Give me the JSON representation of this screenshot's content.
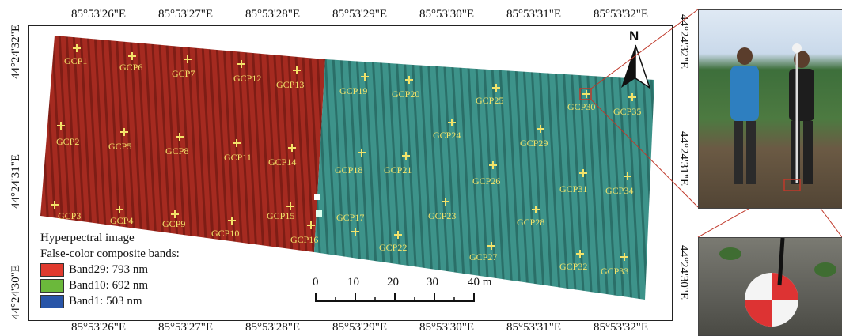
{
  "coords": {
    "top": [
      "85°53'26\"E",
      "85°53'27\"E",
      "85°53'28\"E",
      "85°53'29\"E",
      "85°53'30\"E",
      "85°53'31\"E",
      "85°53'32\"E"
    ],
    "bottom": [
      "85°53'26\"E",
      "85°53'27\"E",
      "85°53'28\"E",
      "85°53'29\"E",
      "85°53'30\"E",
      "85°53'31\"E",
      "85°53'32\"E"
    ],
    "left": [
      "44°24'32\"E",
      "44°24'31\"E",
      "44°24'30\"E"
    ],
    "right": [
      "44°24'32\"E",
      "44°24'31\"E",
      "44°24'30\"E"
    ]
  },
  "legend": {
    "title1": "Hyperpectral image",
    "title2": "False-color composite bands:",
    "bands": [
      {
        "label": "Band29: 793 nm",
        "color": "#e03a2e"
      },
      {
        "label": "Band10: 692 nm",
        "color": "#6bb83b"
      },
      {
        "label": "Band1: 503 nm",
        "color": "#2855a8"
      }
    ]
  },
  "scale": {
    "ticks": [
      "0",
      "10",
      "20",
      "30",
      "40 m"
    ]
  },
  "north": "N",
  "gcps": [
    "GCP1",
    "GCP2",
    "GCP3",
    "GCP4",
    "GCP5",
    "GCP6",
    "GCP7",
    "GCP8",
    "GCP9",
    "GCP10",
    "GCP11",
    "GCP12",
    "GCP13",
    "GCP14",
    "GCP15",
    "GCP16",
    "GCP17",
    "GCP18",
    "GCP19",
    "GCP20",
    "GCP21",
    "GCP22",
    "GCP23",
    "GCP24",
    "GCP25",
    "GCP26",
    "GCP27",
    "GCP28",
    "GCP29",
    "GCP30",
    "GCP31",
    "GCP32",
    "GCP33",
    "GCP34",
    "GCP35"
  ],
  "colors": {
    "red_field": "#a8291f",
    "cyan_field": "#3a8f86",
    "gcp_marker": "#f3e36a",
    "callout_line": "#c0392b"
  }
}
